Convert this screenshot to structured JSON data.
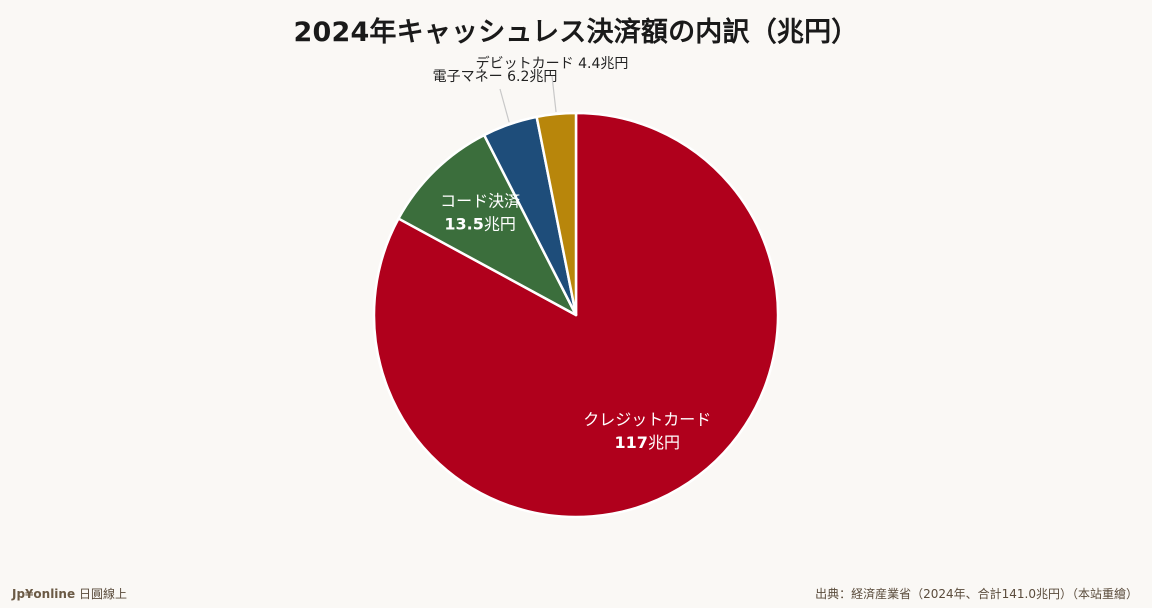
{
  "chart_data": {
    "type": "pie",
    "title": "2024年キャッシュレス決済額の内訳（兆円）",
    "unit": "兆円",
    "slices": [
      {
        "label": "クレジットカード",
        "value": 117,
        "value_text": "117",
        "color": "#b0001c",
        "label_position": "inside"
      },
      {
        "label": "コード決済",
        "value": 13.5,
        "value_text": "13.5",
        "color": "#3b6e3c",
        "label_position": "inside"
      },
      {
        "label": "電子マネー",
        "value": 6.2,
        "value_text": "6.2",
        "color": "#1e4d7a",
        "label_position": "outside"
      },
      {
        "label": "デビットカード",
        "value": 4.4,
        "value_text": "4.4",
        "color": "#b8860b",
        "label_position": "outside"
      }
    ],
    "start": "12 o'clock",
    "direction": "clockwise"
  },
  "footer": {
    "brand": "Jp¥online",
    "brand_suffix": "日圓線上",
    "source": "出典：経済産業省（2024年、合計141.0兆円）（本站重繪）"
  }
}
